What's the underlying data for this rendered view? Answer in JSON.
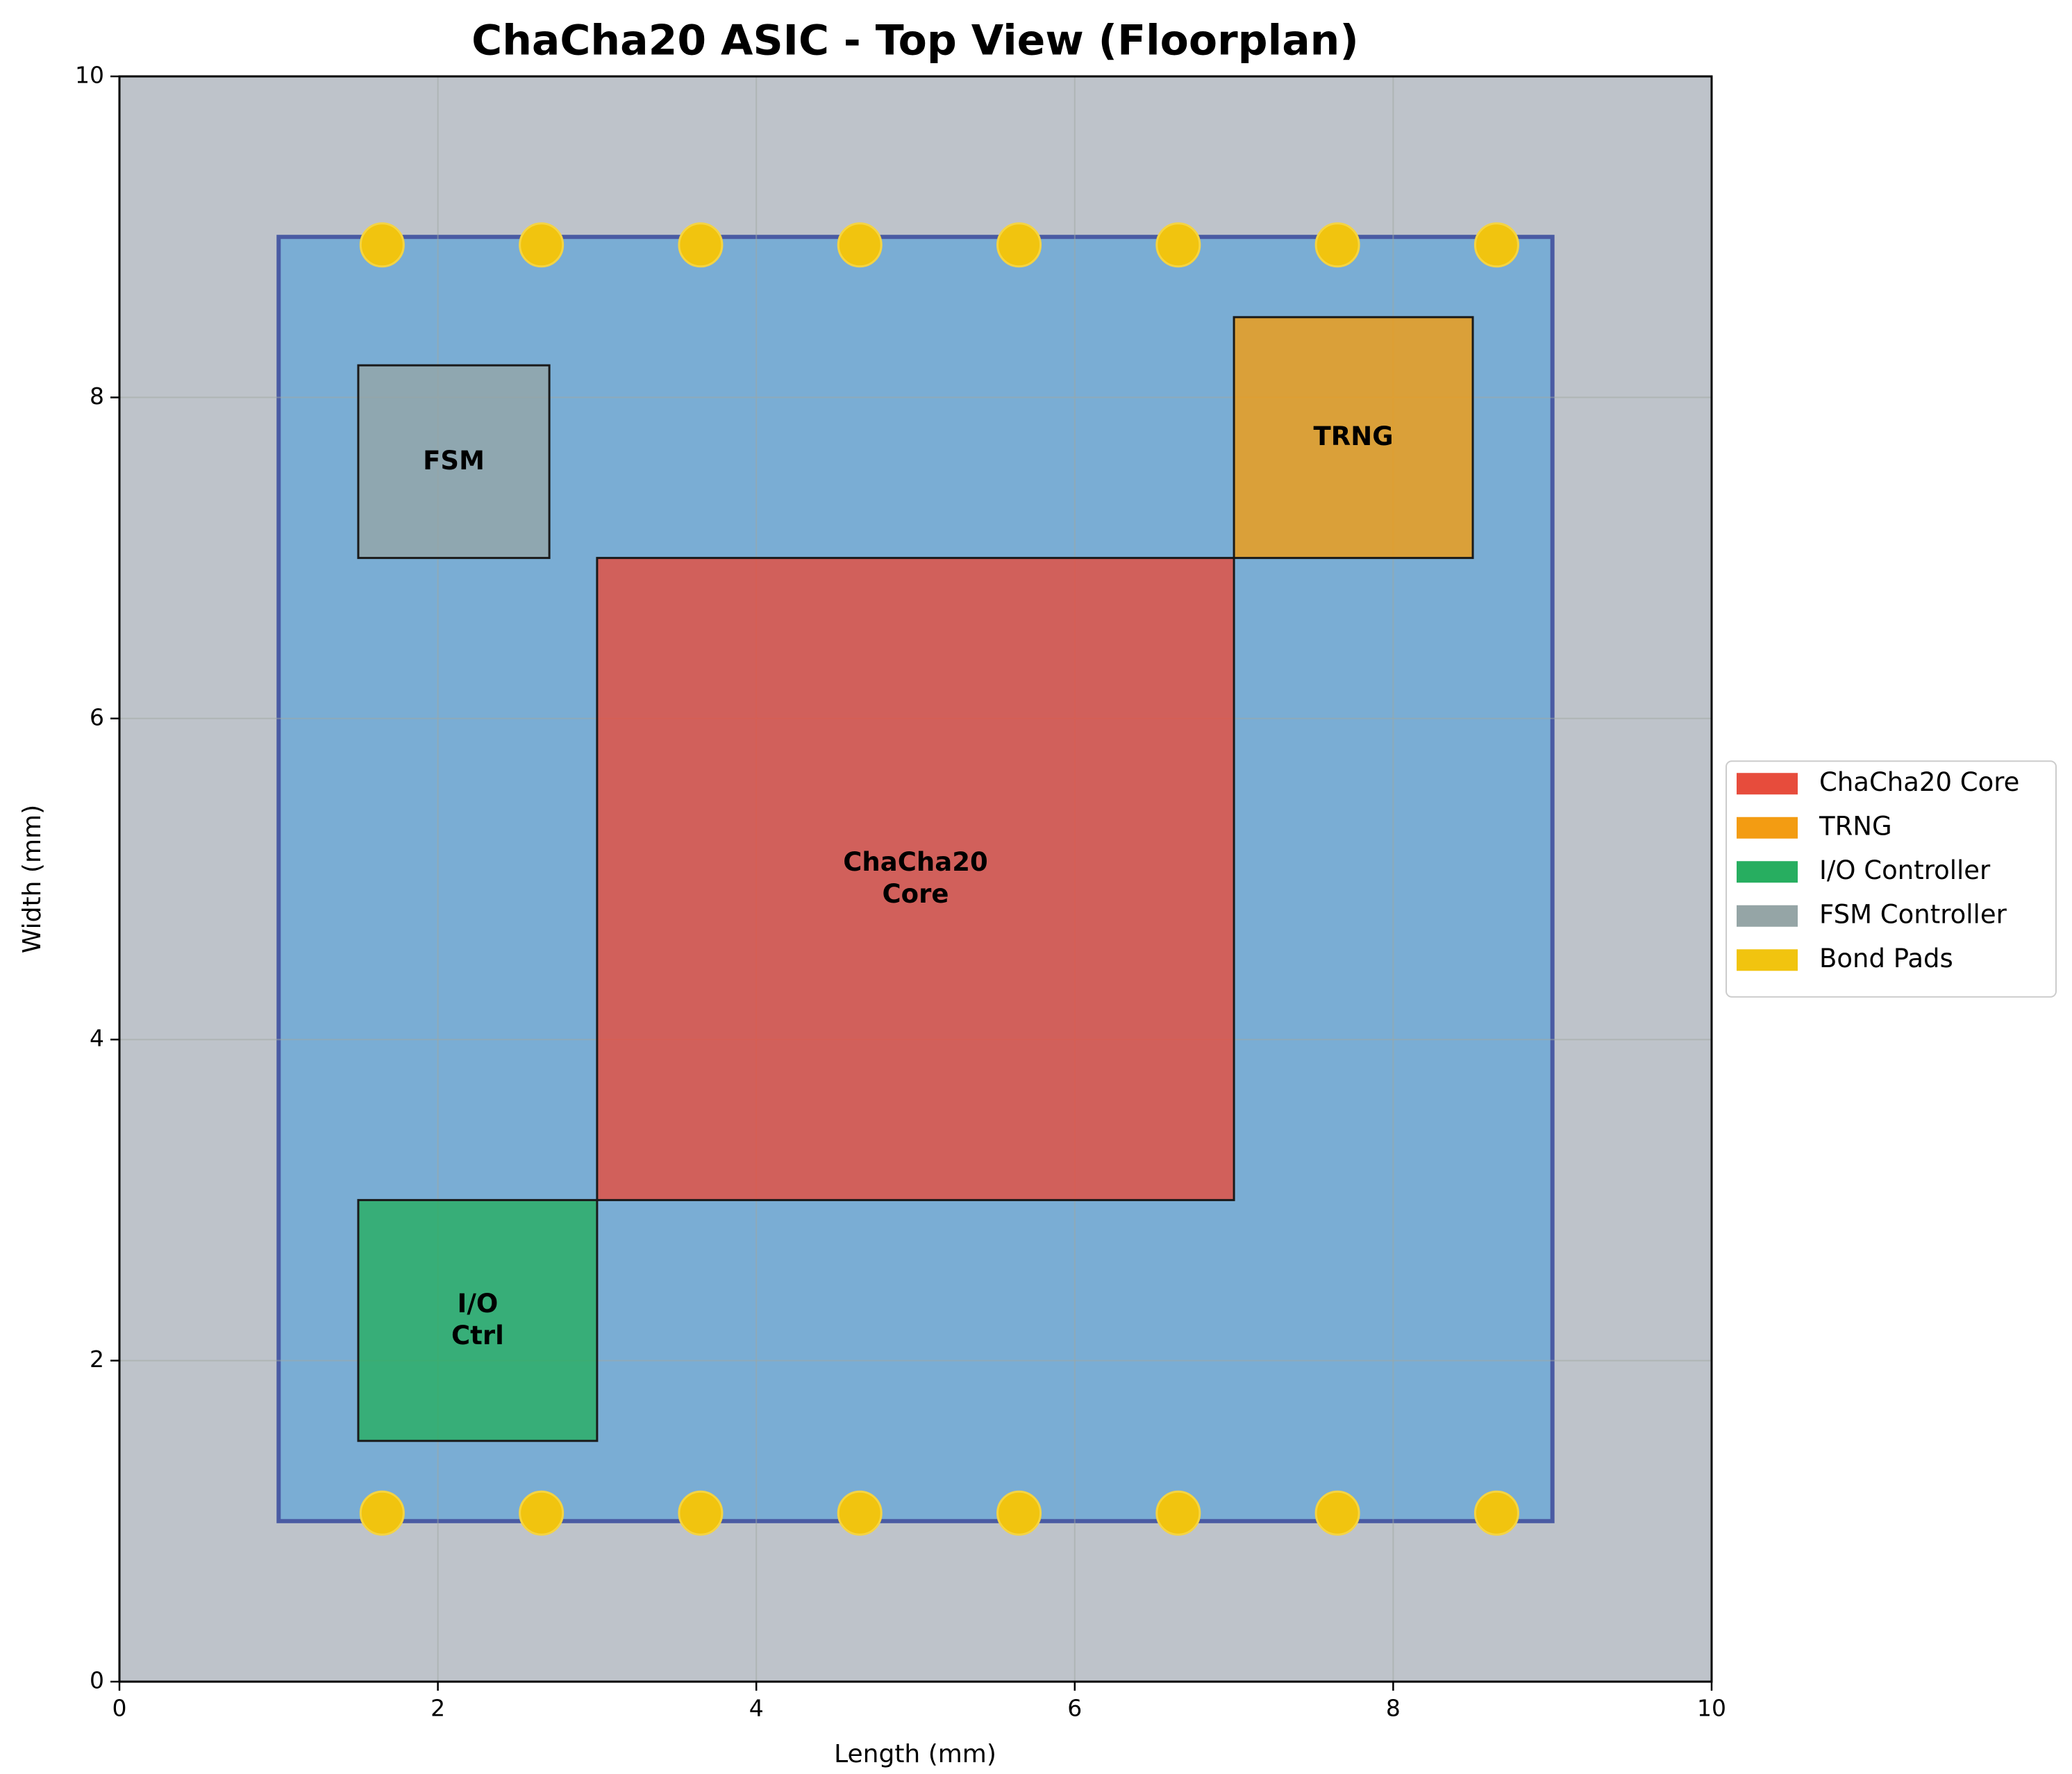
{
  "chart_data": {
    "type": "floorplan",
    "title": "ChaCha20 ASIC - Top View (Floorplan)",
    "xlabel": "Length (mm)",
    "ylabel": "Width (mm)",
    "xlim": [
      0,
      10
    ],
    "ylim": [
      0,
      10
    ],
    "xticks": [
      0,
      2,
      4,
      6,
      8,
      10
    ],
    "yticks": [
      0,
      2,
      4,
      6,
      8,
      10
    ],
    "grid": true,
    "legend": "center right",
    "chip": {
      "x": 0,
      "y": 0,
      "width": 10,
      "height": 10,
      "color": "#bec3ca"
    },
    "die": {
      "x": 1,
      "y": 1,
      "width": 8,
      "height": 8,
      "color": "#7aadd4",
      "edge": "#4a5ba3"
    },
    "blocks": [
      {
        "name": "ChaCha20 Core",
        "label": "ChaCha20\nCore",
        "color": "#e74c3c",
        "x": 3,
        "y": 3,
        "width": 4,
        "height": 4
      },
      {
        "name": "TRNG",
        "label": "TRNG",
        "color": "#f39c12",
        "x": 7,
        "y": 7,
        "width": 1.5,
        "height": 1.5
      },
      {
        "name": "I/O Controller",
        "label": "I/O\nCtrl",
        "color": "#27ae60",
        "x": 1.5,
        "y": 1.5,
        "width": 1.5,
        "height": 1.5
      },
      {
        "name": "FSM Controller",
        "label": "FSM",
        "color": "#95a5a6",
        "x": 1.5,
        "y": 7,
        "width": 1.2,
        "height": 1.2
      }
    ],
    "pads": {
      "name": "Bond Pads",
      "color": "#f1c40f",
      "x": [
        1.65,
        2.65,
        3.65,
        4.65,
        5.65,
        6.65,
        7.65,
        8.65
      ],
      "rows": [
        1.05,
        8.95
      ]
    }
  }
}
